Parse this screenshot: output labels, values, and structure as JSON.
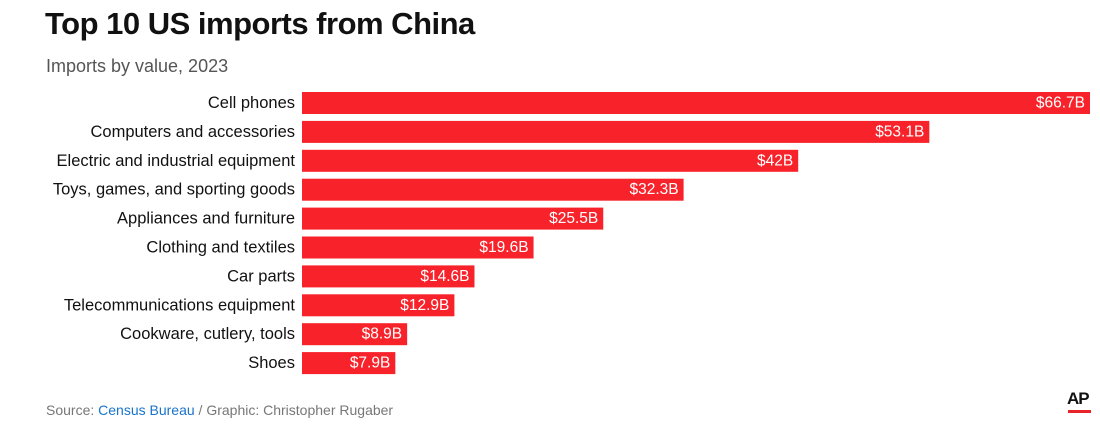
{
  "header": {
    "title": "Top 10 US imports from China",
    "subtitle": "Imports by value, 2023"
  },
  "footer": {
    "source_prefix": "Source: ",
    "source_link": "Census Bureau",
    "source_suffix": " / Graphic: Christopher Rugaber",
    "logo_text": "AP"
  },
  "colors": {
    "bar": "#f8232a",
    "label": "#111111",
    "value_label": "#ffffff",
    "logo_accent": "#e8232a"
  },
  "chart_data": {
    "type": "bar",
    "orientation": "horizontal",
    "title": "Top 10 US imports from China",
    "subtitle": "Imports by value, 2023",
    "categories": [
      "Cell phones",
      "Computers and accessories",
      "Electric and industrial equipment",
      "Toys, games, and sporting goods",
      "Appliances and furniture",
      "Clothing and textiles",
      "Car parts",
      "Telecommunications equipment",
      "Cookware, cutlery, tools",
      "Shoes"
    ],
    "values": [
      66.7,
      53.1,
      42,
      32.3,
      25.5,
      19.6,
      14.6,
      12.9,
      8.9,
      7.9
    ],
    "value_labels": [
      "$66.7B",
      "$53.1B",
      "$42B",
      "$32.3B",
      "$25.5B",
      "$19.6B",
      "$14.6B",
      "$12.9B",
      "$8.9B",
      "$7.9B"
    ],
    "unit": "billion USD",
    "xlim": [
      0,
      66.7
    ],
    "grid": false,
    "legend": "none"
  }
}
